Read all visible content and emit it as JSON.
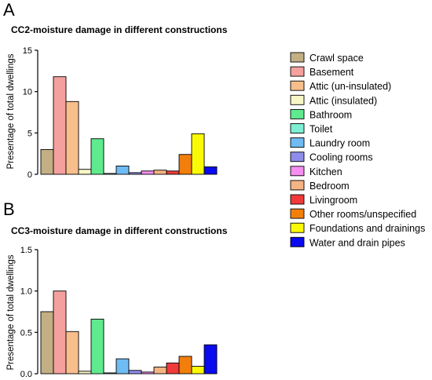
{
  "legend": {
    "items": [
      {
        "label": "Crawl space",
        "color": "#C2AF84"
      },
      {
        "label": "Basement",
        "color": "#F4A09E"
      },
      {
        "label": "Attic (un-insulated)",
        "color": "#F8BE8C"
      },
      {
        "label": "Attic (insulated)",
        "color": "#F6F6C6"
      },
      {
        "label": "Bathroom",
        "color": "#5FEA8E"
      },
      {
        "label": "Toilet",
        "color": "#7FEFD4"
      },
      {
        "label": "Laundry room",
        "color": "#6FBBF3"
      },
      {
        "label": "Cooling rooms",
        "color": "#8E8EEA"
      },
      {
        "label": "Kitchen",
        "color": "#F58EF0"
      },
      {
        "label": "Bedroom",
        "color": "#F4B483"
      },
      {
        "label": "Livingroom",
        "color": "#F03A3A"
      },
      {
        "label": "Other rooms/unspecified",
        "color": "#F27F0C"
      },
      {
        "label": "Foundations and drainings",
        "color": "#FAFA06"
      },
      {
        "label": "Water and drain pipes",
        "color": "#0A0AEF"
      }
    ]
  },
  "chart_data": [
    {
      "panel": "A",
      "type": "bar",
      "title": "CC2-moisture damage in different constructions",
      "xlabel": "",
      "ylabel": "Presentage of total dwellings",
      "ylim": [
        0,
        15
      ],
      "yticks": [
        "0",
        "5",
        "10",
        "15"
      ],
      "categories": [
        "Crawl space",
        "Basement",
        "Attic (un-insulated)",
        "Attic (insulated)",
        "Bathroom",
        "Toilet",
        "Laundry room",
        "Cooling rooms",
        "Kitchen",
        "Bedroom",
        "Livingroom",
        "Other rooms/unspecified",
        "Foundations and drainings",
        "Water and drain pipes"
      ],
      "values": [
        3.0,
        11.8,
        8.8,
        0.6,
        4.3,
        0.1,
        1.0,
        0.2,
        0.4,
        0.5,
        0.4,
        2.4,
        4.9,
        0.9
      ],
      "legend_position": "right",
      "grid": false
    },
    {
      "panel": "B",
      "type": "bar",
      "title": "CC3-moisture damage in different constructions",
      "xlabel": "",
      "ylabel": "Presentage of total dwellings",
      "ylim": [
        0,
        1.5
      ],
      "yticks": [
        "0.0",
        "0.5",
        "1.0",
        "1.5"
      ],
      "categories": [
        "Crawl space",
        "Basement",
        "Attic (un-insulated)",
        "Attic (insulated)",
        "Bathroom",
        "Toilet",
        "Laundry room",
        "Cooling rooms",
        "Kitchen",
        "Bedroom",
        "Livingroom",
        "Other rooms/unspecified",
        "Foundations and drainings",
        "Water and drain pipes"
      ],
      "values": [
        0.75,
        1.0,
        0.51,
        0.03,
        0.66,
        0.01,
        0.18,
        0.04,
        0.02,
        0.08,
        0.13,
        0.21,
        0.09,
        0.35
      ],
      "legend_position": "right",
      "grid": false
    }
  ]
}
